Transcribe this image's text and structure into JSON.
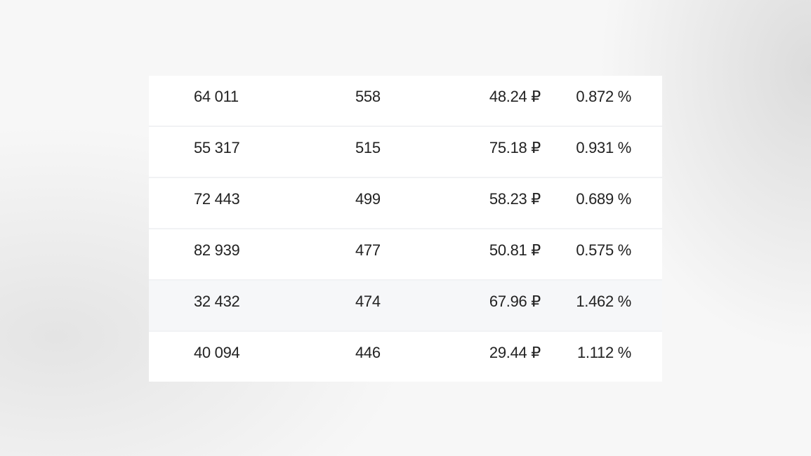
{
  "table": {
    "highlight_color": "#f6f7f9",
    "highlighted_row": 4,
    "rows": [
      [
        "64 011",
        "558",
        "48.24 ₽",
        "0.872 %"
      ],
      [
        "55 317",
        "515",
        "75.18 ₽",
        "0.931 %"
      ],
      [
        "72 443",
        "499",
        "58.23 ₽",
        "0.689 %"
      ],
      [
        "82 939",
        "477",
        "50.81 ₽",
        "0.575 %"
      ],
      [
        "32 432",
        "474",
        "67.96 ₽",
        "1.462 %"
      ],
      [
        "40 094",
        "446",
        "29.44 ₽",
        "1.112 %"
      ]
    ]
  }
}
